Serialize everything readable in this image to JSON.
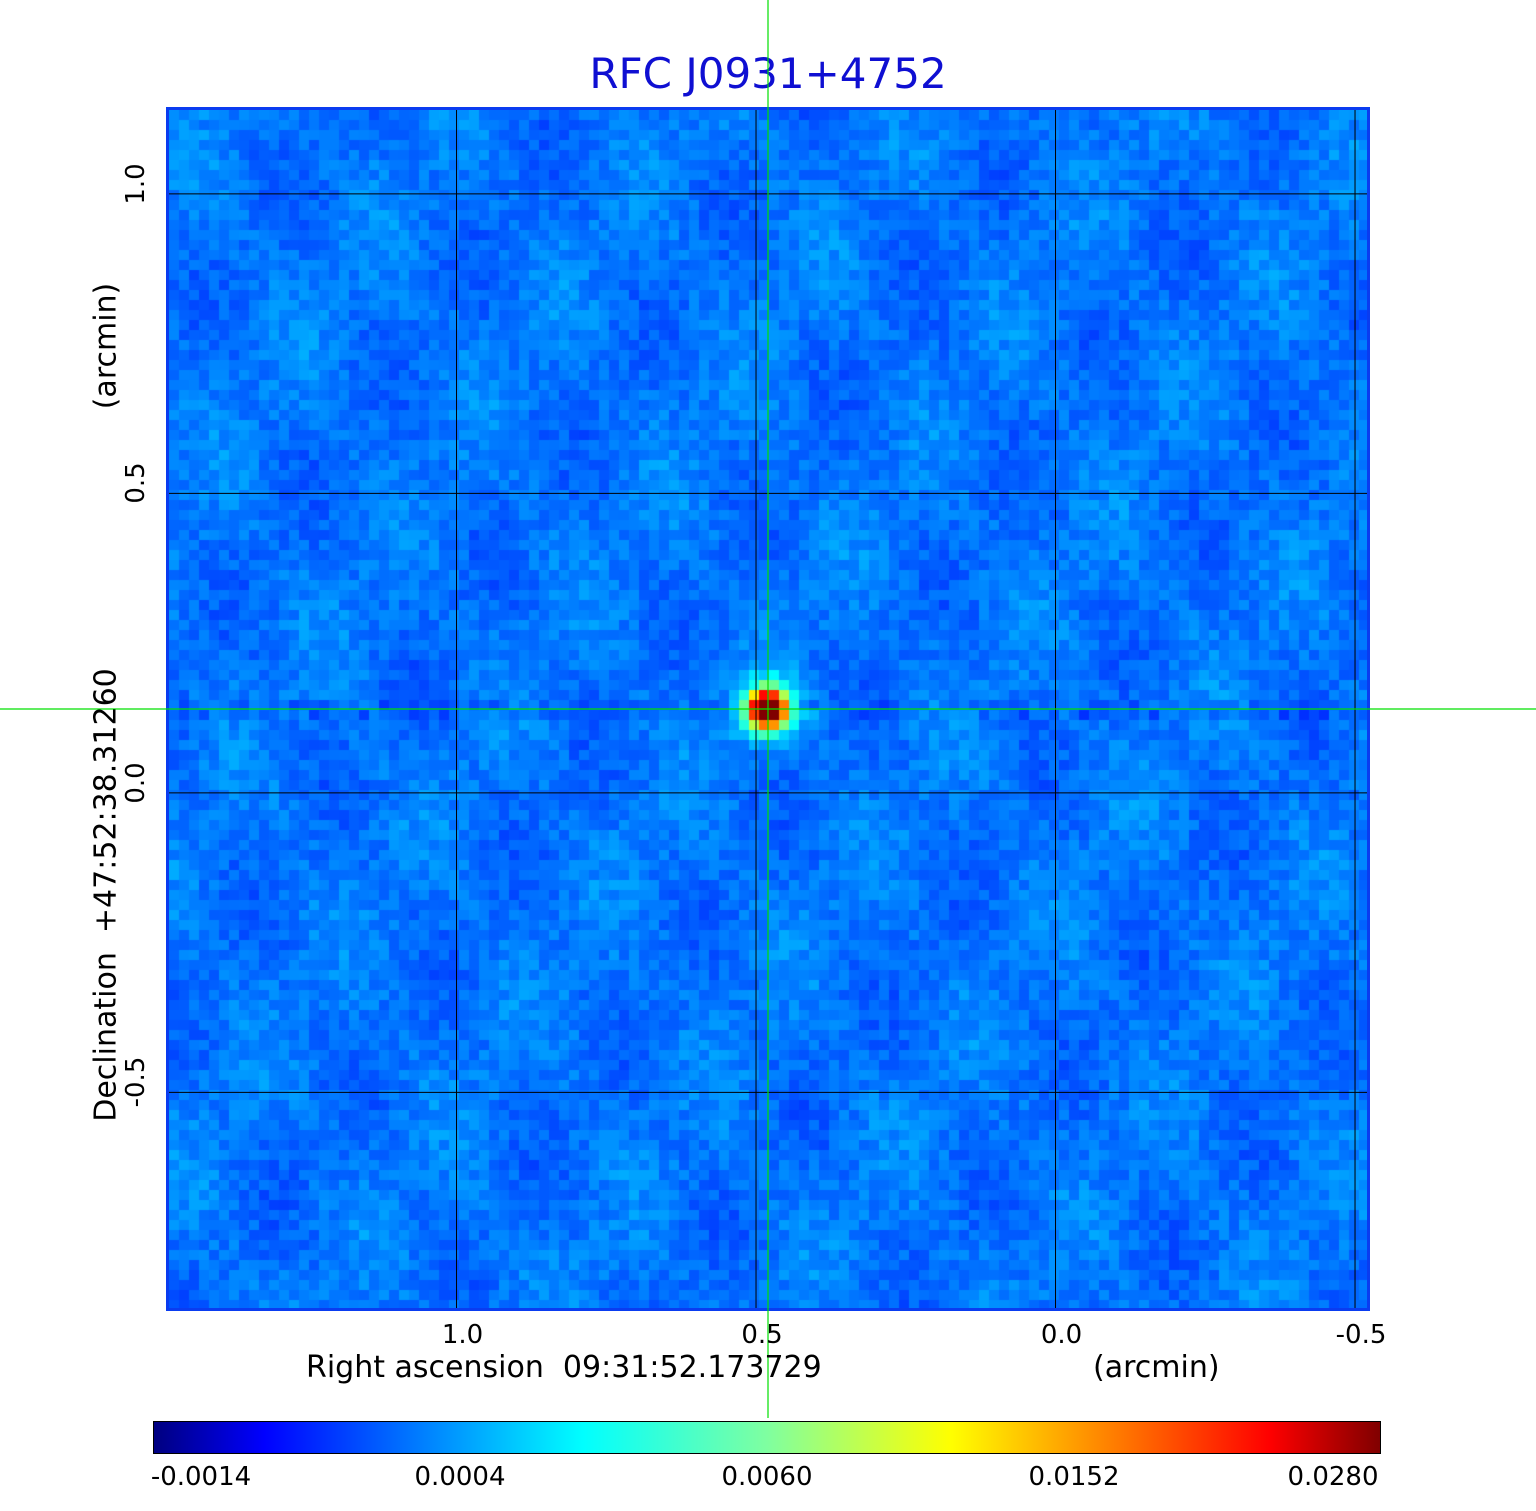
{
  "chart_data": {
    "type": "heatmap",
    "title": "RFC J0931+4752",
    "xlabel": "Right ascension  09:31:52.173729",
    "xunit": "(arcmin)",
    "ylabel": "Declination  +47:52:38.31260",
    "yunit": "(arcmin)",
    "x_ticks": [
      1.0,
      0.5,
      0.0,
      -0.5
    ],
    "x_tick_labels": [
      "1.0",
      "0.5",
      "0.0",
      "-0.5"
    ],
    "xlim": [
      1.48,
      -0.52
    ],
    "y_ticks": [
      1.0,
      0.5,
      0.0,
      -0.5
    ],
    "y_tick_labels": [
      "1.0",
      "0.5",
      "0.0",
      "-0.5"
    ],
    "ylim": [
      -0.86,
      1.14
    ],
    "grid": true,
    "crosshair": {
      "x": 0.48,
      "y": 0.14
    },
    "peak": {
      "x": 0.48,
      "y": 0.14,
      "value": 0.028
    },
    "background_level": 0.0004,
    "colormap": "jet",
    "colorbar": {
      "ticks": [
        -0.0014,
        0.0004,
        0.006,
        0.0152,
        0.028
      ],
      "tick_labels": [
        "-0.0014",
        "0.0004",
        "0.0060",
        "0.0152",
        "0.0280"
      ],
      "range": [
        -0.0014,
        0.028
      ]
    }
  },
  "colors": {
    "title": "#0f0fd2",
    "crosshair": "#00e000",
    "grid": "#000000",
    "frame": "#0a3cf0"
  }
}
